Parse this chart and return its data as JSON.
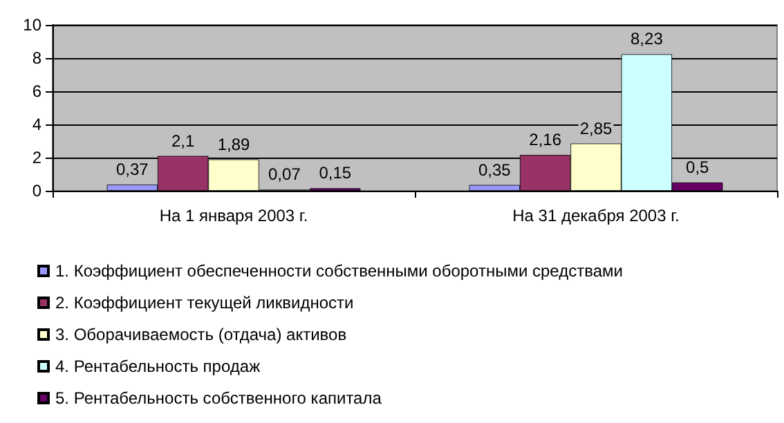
{
  "chart_data": {
    "type": "bar",
    "categories": [
      "На 1 января 2003 г.",
      "На 31 декабря 2003 г."
    ],
    "series": [
      {
        "name": "1. Коэффициент обеспеченности собственными оборотными средствами",
        "color": "#9999ff",
        "values": [
          0.37,
          0.35
        ],
        "value_labels": [
          "0,37",
          "0,35"
        ]
      },
      {
        "name": "2. Коэффициент текущей ликвидности",
        "color": "#993366",
        "values": [
          2.1,
          2.16
        ],
        "value_labels": [
          "2,1",
          "2,16"
        ]
      },
      {
        "name": "3. Оборачиваемость (отдача) активов",
        "color": "#ffffcc",
        "values": [
          1.89,
          2.85
        ],
        "value_labels": [
          "1,89",
          "2,85"
        ]
      },
      {
        "name": "4. Рентабельность продаж",
        "color": "#ccffff",
        "values": [
          0.07,
          8.23
        ],
        "value_labels": [
          "0,07",
          "8,23"
        ]
      },
      {
        "name": "5. Рентабельность собственного капитала",
        "color": "#660066",
        "values": [
          0.15,
          0.5
        ],
        "value_labels": [
          "0,15",
          "0,5"
        ]
      }
    ],
    "ylim": [
      0,
      10
    ],
    "yticks": [
      0,
      2,
      4,
      6,
      8,
      10
    ],
    "grid": "y",
    "legend": "bottom"
  }
}
